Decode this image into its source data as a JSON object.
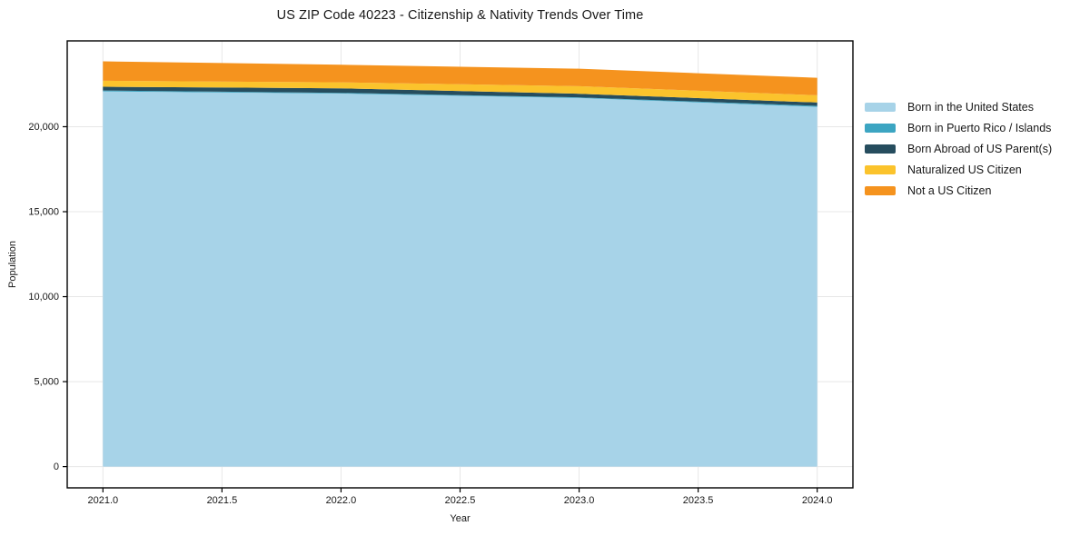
{
  "chart_data": {
    "type": "area",
    "stacked": true,
    "title": "US ZIP Code 40223 - Citizenship & Nativity Trends Over Time",
    "xlabel": "Year",
    "ylabel": "Population",
    "x": [
      2021,
      2022,
      2023,
      2024
    ],
    "series": [
      {
        "name": "Born in the United States",
        "color": "#A7D3E8",
        "values": [
          22080,
          21950,
          21685,
          21170
        ]
      },
      {
        "name": "Born in Puerto Rico / Islands",
        "color": "#3CA5C2",
        "values": [
          50,
          40,
          40,
          60
        ]
      },
      {
        "name": "Born Abroad of US Parent(s)",
        "color": "#264D5E",
        "values": [
          220,
          270,
          215,
          195
        ]
      },
      {
        "name": "Naturalized US Citizen",
        "color": "#FBC32C",
        "values": [
          355,
          355,
          445,
          425
        ]
      },
      {
        "name": "Not a US Citizen",
        "color": "#F5931E",
        "values": [
          1140,
          1030,
          1030,
          1030
        ]
      }
    ],
    "xlim": [
      2020.85,
      2024.15
    ],
    "ylim": [
      -1250,
      25050
    ],
    "xticks": {
      "values": [
        2021.0,
        2021.5,
        2022.0,
        2022.5,
        2023.0,
        2023.5,
        2024.0
      ],
      "labels": [
        "2021.0",
        "2021.5",
        "2022.0",
        "2022.5",
        "2023.0",
        "2023.5",
        "2024.0"
      ]
    },
    "yticks": {
      "values": [
        0,
        5000,
        10000,
        15000,
        20000
      ],
      "labels": [
        "0",
        "5,000",
        "10,000",
        "15,000",
        "20,000"
      ]
    },
    "grid": true,
    "grid_color": "#E7E7E7",
    "axis_color": "#000000",
    "text_color": "#171717",
    "legend_position": "right"
  }
}
